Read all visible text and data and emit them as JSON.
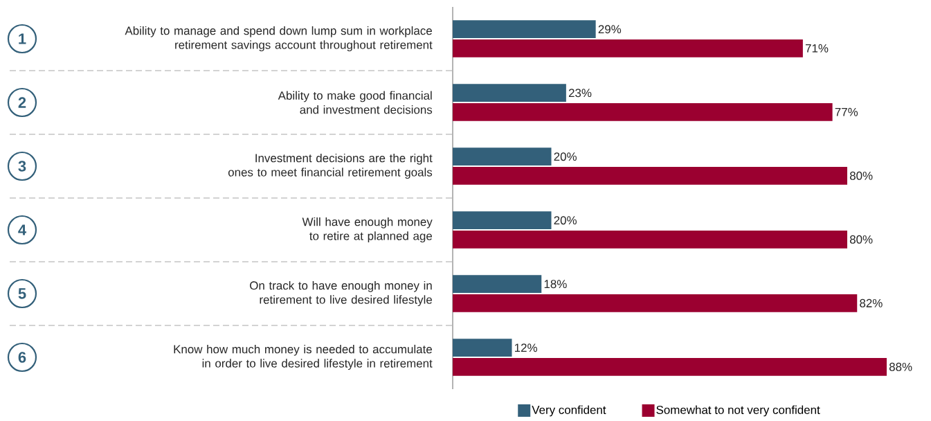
{
  "chart_data": {
    "type": "bar",
    "orientation": "horizontal",
    "legend": "bottom",
    "tick_labels": "y",
    "categories": [
      "Ability to manage and spend down lump sum in workplace retirement savings account throughout retirement",
      "Ability to make good financial and investment decisions",
      "Investment decisions are the right ones to meet financial retirement goals",
      "Will have enough money to retire at planned age",
      "On track to have enough money in retirement to live desired lifestyle",
      "Know how much money is needed to accumulate in order to live desired lifestyle in retirement"
    ],
    "annotations": [
      "1",
      "2",
      "3",
      "4",
      "5",
      "6"
    ],
    "series": [
      {
        "name": "Very confident",
        "color": "#33607a",
        "values": [
          29,
          23,
          20,
          20,
          18,
          12
        ],
        "value_labels": [
          "29%",
          "23%",
          "20%",
          "20%",
          "18%",
          "12%"
        ]
      },
      {
        "name": "Somewhat to not very confident",
        "color": "#9b0030",
        "values": [
          71,
          77,
          80,
          80,
          82,
          88
        ],
        "value_labels": [
          "71%",
          "77%",
          "80%",
          "80%",
          "82%",
          "88%"
        ]
      }
    ]
  }
}
